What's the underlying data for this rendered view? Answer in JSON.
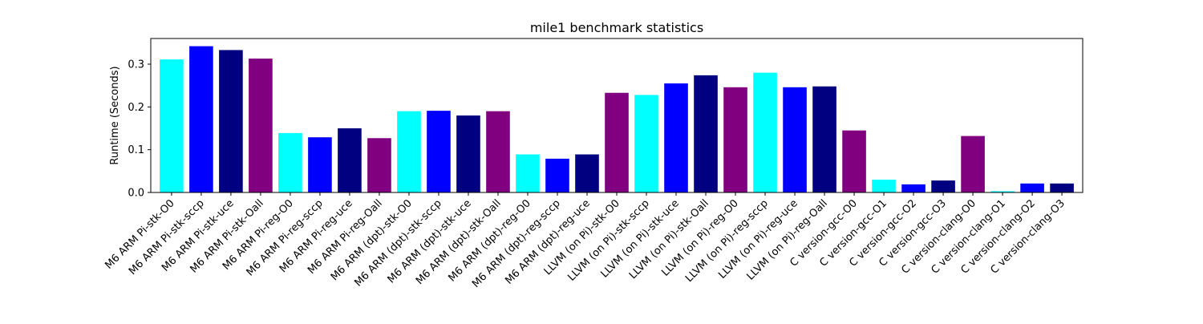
{
  "chart_data": {
    "type": "bar",
    "title": "mile1 benchmark statistics",
    "xlabel": "",
    "ylabel": "Runtime (Seconds)",
    "ylim": [
      0,
      0.36
    ],
    "yticks": [
      "0.0",
      "0.1",
      "0.2",
      "0.3"
    ],
    "ytick_values": [
      0.0,
      0.1,
      0.2,
      0.3
    ],
    "grid": false,
    "categories": [
      "M6 ARM Pi-stk-O0",
      "M6 ARM Pi-stk-sccp",
      "M6 ARM Pi-stk-uce",
      "M6 ARM Pi-stk-Oall",
      "M6 ARM Pi-reg-O0",
      "M6 ARM Pi-reg-sccp",
      "M6 ARM Pi-reg-uce",
      "M6 ARM Pi-reg-Oall",
      "M6 ARM (dpt)-stk-O0",
      "M6 ARM (dpt)-stk-sccp",
      "M6 ARM (dpt)-stk-uce",
      "M6 ARM (dpt)-stk-Oall",
      "M6 ARM (dpt)-reg-O0",
      "M6 ARM (dpt)-reg-sccp",
      "M6 ARM (dpt)-reg-uce",
      "LLVM (on Pi)-stk-O0",
      "LLVM (on Pi)-stk-sccp",
      "LLVM (on Pi)-stk-uce",
      "LLVM (on Pi)-stk-Oall",
      "LLVM (on Pi)-reg-O0",
      "LLVM (on Pi)-reg-sccp",
      "LLVM (on Pi)-reg-uce",
      "LLVM (on Pi)-reg-Oall",
      "C version-gcc-O0",
      "C version-gcc-O1",
      "C version-gcc-O2",
      "C version-gcc-O3",
      "C version-clang-O0",
      "C version-clang-O1",
      "C version-clang-O2",
      "C version-clang-O3"
    ],
    "values": [
      0.311,
      0.342,
      0.333,
      0.313,
      0.139,
      0.129,
      0.15,
      0.127,
      0.19,
      0.191,
      0.18,
      0.19,
      0.089,
      0.079,
      0.089,
      0.233,
      0.228,
      0.255,
      0.274,
      0.246,
      0.28,
      0.246,
      0.248,
      0.145,
      0.03,
      0.019,
      0.028,
      0.132,
      0.003,
      0.021,
      0.021
    ],
    "colors": [
      "#00ffff",
      "#0000ff",
      "#000080",
      "#800080",
      "#00ffff",
      "#0000ff",
      "#000080",
      "#800080",
      "#00ffff",
      "#0000ff",
      "#000080",
      "#800080",
      "#00ffff",
      "#0000ff",
      "#000080",
      "#800080",
      "#00ffff",
      "#0000ff",
      "#000080",
      "#800080",
      "#00ffff",
      "#0000ff",
      "#000080",
      "#800080",
      "#00ffff",
      "#0000ff",
      "#000080",
      "#800080",
      "#00ffff",
      "#0000ff",
      "#000080"
    ]
  }
}
